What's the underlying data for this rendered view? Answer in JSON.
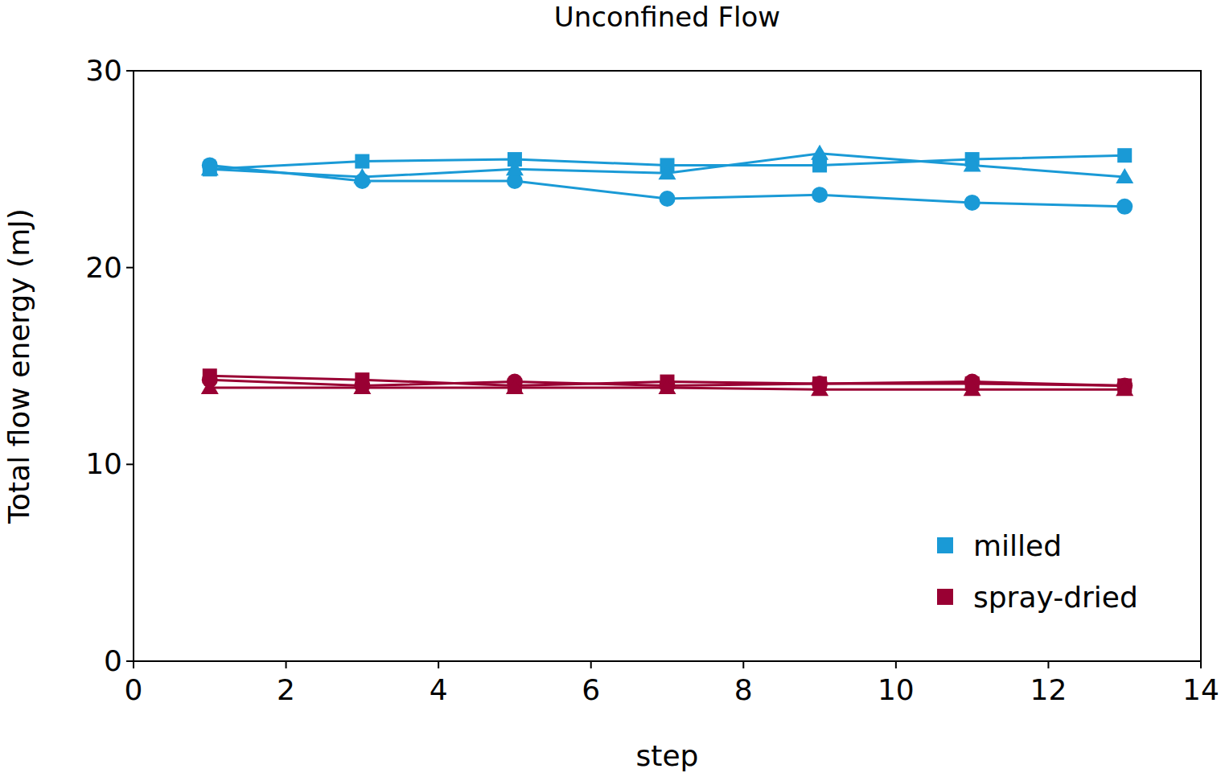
{
  "chart_data": {
    "type": "line",
    "title": "Unconfined Flow",
    "x_label": "step",
    "y_label": "Total flow energy (mJ)",
    "xlim": [
      0,
      14
    ],
    "xticks": [
      0,
      2,
      4,
      6,
      8,
      10,
      12,
      14
    ],
    "ylim": [
      0,
      30
    ],
    "yticks": [
      0,
      10,
      20,
      30
    ],
    "grid": false,
    "legend": "bottom-right",
    "x": [
      1,
      3,
      5,
      7,
      9,
      11,
      13
    ],
    "series": [
      {
        "name": "milled",
        "color": "#1a9ad6",
        "marker": "circle",
        "values": [
          25.2,
          24.4,
          24.4,
          23.5,
          23.7,
          23.3,
          23.1
        ]
      },
      {
        "name": "milled",
        "color": "#1a9ad6",
        "marker": "square",
        "values": [
          25.0,
          25.4,
          25.5,
          25.2,
          25.2,
          25.5,
          25.7
        ]
      },
      {
        "name": "milled",
        "color": "#1a9ad6",
        "marker": "triangle",
        "values": [
          25.0,
          24.6,
          25.0,
          24.8,
          25.8,
          25.2,
          24.6
        ]
      },
      {
        "name": "spray-dried",
        "color": "#990033",
        "marker": "square",
        "values": [
          14.5,
          14.3,
          14.0,
          14.2,
          14.1,
          14.1,
          14.0
        ]
      },
      {
        "name": "spray-dried",
        "color": "#990033",
        "marker": "circle",
        "values": [
          14.3,
          14.0,
          14.2,
          14.0,
          14.1,
          14.2,
          14.0
        ]
      },
      {
        "name": "spray-dried",
        "color": "#990033",
        "marker": "triangle",
        "values": [
          13.9,
          13.9,
          13.9,
          13.9,
          13.8,
          13.8,
          13.8
        ]
      }
    ]
  }
}
